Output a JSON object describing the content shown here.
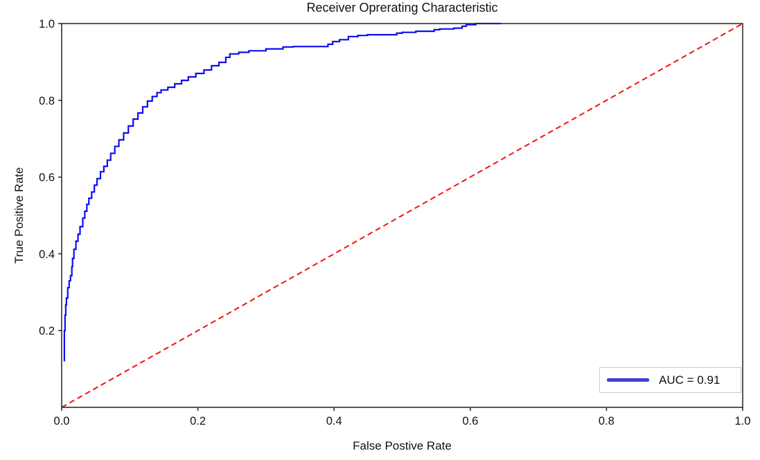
{
  "chart_data": {
    "type": "line",
    "title": "Receiver Oprerating Characteristic",
    "xlabel": "False Postive Rate",
    "ylabel": "True Positive Rate",
    "xlim": [
      0.0,
      1.0
    ],
    "ylim": [
      0.0,
      1.0
    ],
    "grid": false,
    "background_color": "#ffffff",
    "axis_color": "#2f2f2f",
    "text_color": "#111111",
    "x_ticks": {
      "values": [
        0.0,
        0.2,
        0.4,
        0.6,
        0.8,
        1.0
      ],
      "labels": [
        "0.0",
        "0.2",
        "0.4",
        "0.6",
        "0.8",
        "1.0"
      ]
    },
    "y_ticks": {
      "values": [
        0.2,
        0.4,
        0.6,
        0.8,
        1.0
      ],
      "labels": [
        "0.2",
        "0.4",
        "0.6",
        "0.8",
        "1.0"
      ]
    },
    "series": [
      {
        "name": "roc-curve",
        "color": "#0d0dee",
        "line_style": "solid",
        "line_width": 2.2,
        "draw": "steps",
        "points": [
          [
            0.004,
            0.12
          ],
          [
            0.004,
            0.16
          ],
          [
            0.005,
            0.2
          ],
          [
            0.005,
            0.23
          ],
          [
            0.006,
            0.24
          ],
          [
            0.007,
            0.267
          ],
          [
            0.009,
            0.285
          ],
          [
            0.011,
            0.312
          ],
          [
            0.013,
            0.33
          ],
          [
            0.015,
            0.343
          ],
          [
            0.016,
            0.366
          ],
          [
            0.018,
            0.388
          ],
          [
            0.021,
            0.412
          ],
          [
            0.024,
            0.433
          ],
          [
            0.027,
            0.451
          ],
          [
            0.031,
            0.471
          ],
          [
            0.034,
            0.493
          ],
          [
            0.037,
            0.511
          ],
          [
            0.04,
            0.529
          ],
          [
            0.044,
            0.545
          ],
          [
            0.048,
            0.561
          ],
          [
            0.052,
            0.579
          ],
          [
            0.057,
            0.596
          ],
          [
            0.062,
            0.614
          ],
          [
            0.067,
            0.628
          ],
          [
            0.072,
            0.644
          ],
          [
            0.078,
            0.662
          ],
          [
            0.084,
            0.68
          ],
          [
            0.091,
            0.697
          ],
          [
            0.098,
            0.715
          ],
          [
            0.105,
            0.733
          ],
          [
            0.112,
            0.751
          ],
          [
            0.119,
            0.767
          ],
          [
            0.126,
            0.783
          ],
          [
            0.133,
            0.798
          ],
          [
            0.14,
            0.81
          ],
          [
            0.146,
            0.82
          ],
          [
            0.156,
            0.827
          ],
          [
            0.166,
            0.834
          ],
          [
            0.176,
            0.843
          ],
          [
            0.186,
            0.852
          ],
          [
            0.197,
            0.861
          ],
          [
            0.209,
            0.87
          ],
          [
            0.22,
            0.879
          ],
          [
            0.231,
            0.89
          ],
          [
            0.241,
            0.899
          ],
          [
            0.247,
            0.912
          ],
          [
            0.26,
            0.921
          ],
          [
            0.275,
            0.925
          ],
          [
            0.3,
            0.929
          ],
          [
            0.325,
            0.934
          ],
          [
            0.34,
            0.939
          ],
          [
            0.391,
            0.94
          ],
          [
            0.398,
            0.946
          ],
          [
            0.408,
            0.953
          ],
          [
            0.421,
            0.958
          ],
          [
            0.435,
            0.966
          ],
          [
            0.449,
            0.969
          ],
          [
            0.492,
            0.971
          ],
          [
            0.5,
            0.975
          ],
          [
            0.52,
            0.977
          ],
          [
            0.547,
            0.98
          ],
          [
            0.555,
            0.984
          ],
          [
            0.576,
            0.986
          ],
          [
            0.588,
            0.988
          ],
          [
            0.594,
            0.993
          ],
          [
            0.608,
            0.997
          ],
          [
            0.617,
            1.0
          ],
          [
            0.645,
            1.0
          ]
        ]
      },
      {
        "name": "chance-diagonal",
        "color": "#f01310",
        "line_style": "dashed",
        "line_width": 2,
        "draw": "line",
        "points": [
          [
            0.0,
            0.0
          ],
          [
            1.0,
            1.0
          ]
        ]
      }
    ],
    "legend": {
      "position": "lower right",
      "label": "AUC = 0.91",
      "auc": 0.91,
      "swatch_color": "#4040cc",
      "border_color": "#c9c9c9"
    }
  }
}
